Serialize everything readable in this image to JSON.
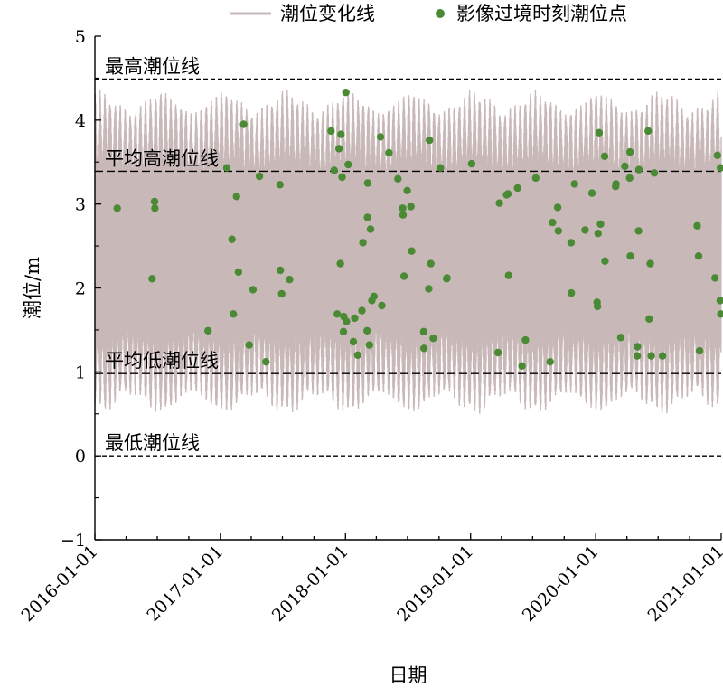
{
  "chart_data": {
    "type": "scatter",
    "xlabel": "日期",
    "ylabel": "潮位/m",
    "ylim": [
      -1,
      5
    ],
    "y_ticks": [
      "−1",
      "0",
      "1",
      "2",
      "3",
      "4",
      "5"
    ],
    "xlim": [
      "2016-01-01",
      "2021-01-01"
    ],
    "x_ticks": [
      "2016-01-01",
      "2017-01-01",
      "2018-01-01",
      "2019-01-01",
      "2020-01-01",
      "2021-01-01"
    ],
    "grid": false,
    "legend_position": "top",
    "legend": [
      {
        "label": "潮位变化线",
        "kind": "line",
        "color": "#c9b8b8"
      },
      {
        "label": "影像过境时刻潮位点",
        "kind": "point",
        "color": "#4b8a35"
      }
    ],
    "tide_line": {
      "color": "#c9b8b8",
      "typical_low": 0.55,
      "typical_high": 4.3,
      "min": 0.05,
      "max": 4.42
    },
    "reference_lines": [
      {
        "label": "最高潮位线",
        "value": 4.49,
        "style": "short-dash"
      },
      {
        "label": "平均高潮位线",
        "value": 3.39,
        "style": "long-dash"
      },
      {
        "label": "平均低潮位线",
        "value": 0.98,
        "style": "long-dash"
      },
      {
        "label": "最低潮位线",
        "value": 0.0,
        "style": "short-dash"
      }
    ],
    "series": [
      {
        "name": "影像过境时刻潮位点",
        "color": "#4b8a35",
        "points": [
          {
            "x": "2016-03-06",
            "y": 2.95
          },
          {
            "x": "2016-06-16",
            "y": 2.11
          },
          {
            "x": "2016-06-23",
            "y": 3.03
          },
          {
            "x": "2016-06-24",
            "y": 2.95
          },
          {
            "x": "2016-11-26",
            "y": 1.49
          },
          {
            "x": "2017-01-20",
            "y": 3.43
          },
          {
            "x": "2017-02-04",
            "y": 2.58
          },
          {
            "x": "2017-02-08",
            "y": 1.69
          },
          {
            "x": "2017-02-17",
            "y": 3.09
          },
          {
            "x": "2017-02-23",
            "y": 2.19
          },
          {
            "x": "2017-03-10",
            "y": 3.95
          },
          {
            "x": "2017-03-26",
            "y": 1.32
          },
          {
            "x": "2017-04-06",
            "y": 1.98
          },
          {
            "x": "2017-04-25",
            "y": 3.33
          },
          {
            "x": "2017-05-14",
            "y": 1.12
          },
          {
            "x": "2017-06-24",
            "y": 3.23
          },
          {
            "x": "2017-06-25",
            "y": 2.21
          },
          {
            "x": "2017-06-29",
            "y": 1.93
          },
          {
            "x": "2017-07-22",
            "y": 2.1
          },
          {
            "x": "2017-11-20",
            "y": 3.87
          },
          {
            "x": "2017-11-29",
            "y": 3.4
          },
          {
            "x": "2017-12-08",
            "y": 1.69
          },
          {
            "x": "2017-12-13",
            "y": 3.66
          },
          {
            "x": "2017-12-17",
            "y": 2.29
          },
          {
            "x": "2017-12-19",
            "y": 3.83
          },
          {
            "x": "2017-12-22",
            "y": 3.32
          },
          {
            "x": "2017-12-26",
            "y": 1.48
          },
          {
            "x": "2017-12-27",
            "y": 1.66
          },
          {
            "x": "2018-01-02",
            "y": 4.33
          },
          {
            "x": "2018-01-04",
            "y": 1.6
          },
          {
            "x": "2018-01-09",
            "y": 3.47
          },
          {
            "x": "2018-01-24",
            "y": 1.36
          },
          {
            "x": "2018-01-28",
            "y": 1.64
          },
          {
            "x": "2018-02-06",
            "y": 1.2
          },
          {
            "x": "2018-02-18",
            "y": 1.73
          },
          {
            "x": "2018-02-21",
            "y": 2.54
          },
          {
            "x": "2018-03-05",
            "y": 1.49
          },
          {
            "x": "2018-03-06",
            "y": 2.84
          },
          {
            "x": "2018-03-07",
            "y": 3.25
          },
          {
            "x": "2018-03-12",
            "y": 1.32
          },
          {
            "x": "2018-03-15",
            "y": 2.7
          },
          {
            "x": "2018-03-19",
            "y": 1.85
          },
          {
            "x": "2018-03-25",
            "y": 1.9
          },
          {
            "x": "2018-04-13",
            "y": 3.8
          },
          {
            "x": "2018-04-17",
            "y": 1.79
          },
          {
            "x": "2018-05-08",
            "y": 3.61
          },
          {
            "x": "2018-06-03",
            "y": 3.3
          },
          {
            "x": "2018-06-17",
            "y": 2.95
          },
          {
            "x": "2018-06-18",
            "y": 2.87
          },
          {
            "x": "2018-06-21",
            "y": 2.14
          },
          {
            "x": "2018-06-30",
            "y": 3.16
          },
          {
            "x": "2018-07-11",
            "y": 2.97
          },
          {
            "x": "2018-07-13",
            "y": 2.44
          },
          {
            "x": "2018-08-17",
            "y": 1.48
          },
          {
            "x": "2018-08-18",
            "y": 1.28
          },
          {
            "x": "2018-09-01",
            "y": 1.99
          },
          {
            "x": "2018-09-03",
            "y": 3.76
          },
          {
            "x": "2018-09-07",
            "y": 2.29
          },
          {
            "x": "2018-09-14",
            "y": 1.4
          },
          {
            "x": "2018-10-05",
            "y": 3.43
          },
          {
            "x": "2018-10-23",
            "y": 2.11
          },
          {
            "x": "2018-10-24",
            "y": 2.12
          },
          {
            "x": "2019-01-04",
            "y": 3.48
          },
          {
            "x": "2019-03-22",
            "y": 1.23
          },
          {
            "x": "2019-03-26",
            "y": 3.01
          },
          {
            "x": "2019-04-16",
            "y": 3.11
          },
          {
            "x": "2019-04-20",
            "y": 3.12
          },
          {
            "x": "2019-04-22",
            "y": 2.15
          },
          {
            "x": "2019-05-18",
            "y": 3.19
          },
          {
            "x": "2019-05-31",
            "y": 1.07
          },
          {
            "x": "2019-06-10",
            "y": 1.38
          },
          {
            "x": "2019-07-10",
            "y": 3.31
          },
          {
            "x": "2019-08-21",
            "y": 1.12
          },
          {
            "x": "2019-08-28",
            "y": 2.78
          },
          {
            "x": "2019-09-12",
            "y": 2.96
          },
          {
            "x": "2019-09-14",
            "y": 2.68
          },
          {
            "x": "2019-10-21",
            "y": 2.54
          },
          {
            "x": "2019-10-22",
            "y": 1.94
          },
          {
            "x": "2019-10-31",
            "y": 3.24
          },
          {
            "x": "2019-12-01",
            "y": 2.69
          },
          {
            "x": "2019-12-21",
            "y": 3.13
          },
          {
            "x": "2020-01-05",
            "y": 1.83
          },
          {
            "x": "2020-01-06",
            "y": 1.78
          },
          {
            "x": "2020-01-08",
            "y": 2.65
          },
          {
            "x": "2020-01-11",
            "y": 3.85
          },
          {
            "x": "2020-01-15",
            "y": 2.76
          },
          {
            "x": "2020-01-27",
            "y": 3.57
          },
          {
            "x": "2020-01-28",
            "y": 2.32
          },
          {
            "x": "2020-02-28",
            "y": 3.21
          },
          {
            "x": "2020-02-29",
            "y": 3.24
          },
          {
            "x": "2020-03-14",
            "y": 1.41
          },
          {
            "x": "2020-03-26",
            "y": 3.45
          },
          {
            "x": "2020-04-09",
            "y": 3.31
          },
          {
            "x": "2020-04-10",
            "y": 3.62
          },
          {
            "x": "2020-04-11",
            "y": 2.38
          },
          {
            "x": "2020-05-01",
            "y": 1.19
          },
          {
            "x": "2020-05-02",
            "y": 1.3
          },
          {
            "x": "2020-05-05",
            "y": 2.68
          },
          {
            "x": "2020-05-06",
            "y": 3.41
          },
          {
            "x": "2020-06-02",
            "y": 3.87
          },
          {
            "x": "2020-06-05",
            "y": 1.63
          },
          {
            "x": "2020-06-08",
            "y": 2.29
          },
          {
            "x": "2020-06-11",
            "y": 1.19
          },
          {
            "x": "2020-06-20",
            "y": 3.37
          },
          {
            "x": "2020-07-14",
            "y": 1.19
          },
          {
            "x": "2020-10-23",
            "y": 2.74
          },
          {
            "x": "2020-10-27",
            "y": 2.38
          },
          {
            "x": "2020-10-30",
            "y": 1.25
          },
          {
            "x": "2020-12-14",
            "y": 2.12
          },
          {
            "x": "2020-12-21",
            "y": 3.58
          },
          {
            "x": "2020-12-29",
            "y": 1.85
          },
          {
            "x": "2020-12-30",
            "y": 3.43
          },
          {
            "x": "2020-12-31",
            "y": 1.69
          }
        ]
      }
    ]
  }
}
